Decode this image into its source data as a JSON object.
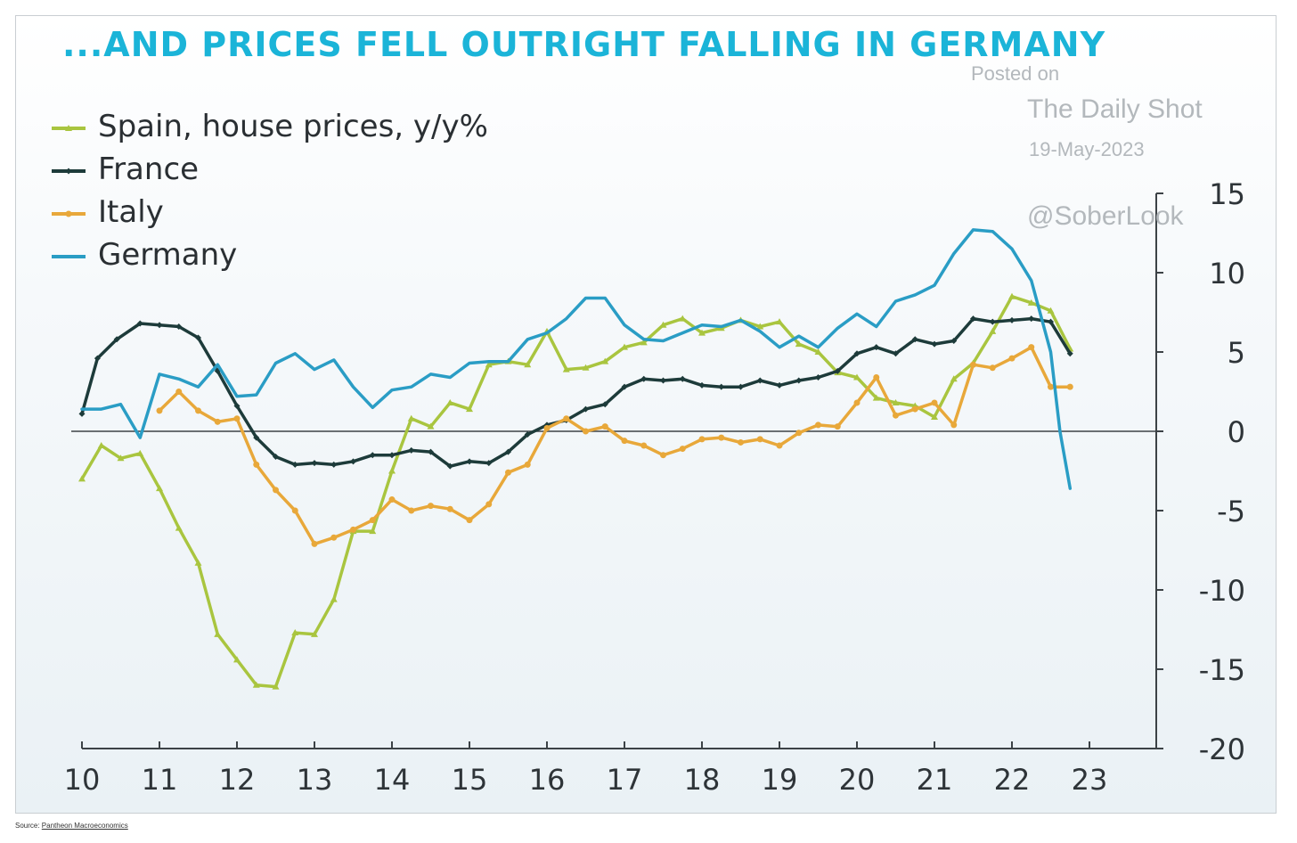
{
  "title": "...AND PRICES FELL OUTRIGHT FALLING IN GERMANY",
  "watermark": {
    "posted": "Posted on",
    "site": "The Daily Shot",
    "date": "19-May-2023",
    "handle": "@SoberLook"
  },
  "source": {
    "prefix": "Source: ",
    "link": "Pantheon Macroeconomics"
  },
  "chart_data": {
    "type": "line",
    "title": "...AND PRICES FELL OUTRIGHT FALLING IN GERMANY",
    "xlim": [
      10,
      24
    ],
    "ylim": [
      -20,
      15
    ],
    "x_ticks": [
      10,
      11,
      12,
      13,
      14,
      15,
      16,
      17,
      18,
      19,
      20,
      21,
      22,
      23
    ],
    "y_ticks": [
      -20,
      -15,
      -10,
      -5,
      0,
      5,
      10,
      15
    ],
    "x_tick_labels": [
      "10",
      "11",
      "12",
      "13",
      "14",
      "15",
      "16",
      "17",
      "18",
      "19",
      "20",
      "21",
      "22",
      "23"
    ],
    "y_tick_labels": [
      "-20",
      "-15",
      "-10",
      "-5",
      "0",
      "5",
      "10",
      "15"
    ],
    "y_axis_side": "right",
    "zero_line": true,
    "legend_position": "top-left",
    "series": [
      {
        "name": "Spain, house prices, y/y%",
        "color": "#a9c53f",
        "marker": "triangle",
        "points": [
          [
            10.0,
            -3.0
          ],
          [
            10.25,
            -0.9
          ],
          [
            10.5,
            -1.7
          ],
          [
            10.75,
            -1.4
          ],
          [
            11.0,
            -3.6
          ],
          [
            11.25,
            -6.1
          ],
          [
            11.5,
            -8.3
          ],
          [
            11.75,
            -12.8
          ],
          [
            12.0,
            -14.4
          ],
          [
            12.25,
            -16.0
          ],
          [
            12.5,
            -16.1
          ],
          [
            12.75,
            -12.7
          ],
          [
            13.0,
            -12.8
          ],
          [
            13.25,
            -10.6
          ],
          [
            13.5,
            -6.3
          ],
          [
            13.75,
            -6.3
          ],
          [
            14.0,
            -2.5
          ],
          [
            14.25,
            0.8
          ],
          [
            14.5,
            0.3
          ],
          [
            14.75,
            1.8
          ],
          [
            15.0,
            1.4
          ],
          [
            15.25,
            4.2
          ],
          [
            15.5,
            4.4
          ],
          [
            15.75,
            4.2
          ],
          [
            16.0,
            6.3
          ],
          [
            16.25,
            3.9
          ],
          [
            16.5,
            4.0
          ],
          [
            16.75,
            4.4
          ],
          [
            17.0,
            5.3
          ],
          [
            17.25,
            5.6
          ],
          [
            17.5,
            6.7
          ],
          [
            17.75,
            7.1
          ],
          [
            18.0,
            6.2
          ],
          [
            18.25,
            6.5
          ],
          [
            18.5,
            7.0
          ],
          [
            18.75,
            6.6
          ],
          [
            19.0,
            6.9
          ],
          [
            19.25,
            5.5
          ],
          [
            19.5,
            5.0
          ],
          [
            19.75,
            3.7
          ],
          [
            20.0,
            3.4
          ],
          [
            20.25,
            2.1
          ],
          [
            20.5,
            1.8
          ],
          [
            20.75,
            1.6
          ],
          [
            21.0,
            0.9
          ],
          [
            21.25,
            3.3
          ],
          [
            21.5,
            4.3
          ],
          [
            21.75,
            6.3
          ],
          [
            22.0,
            8.5
          ],
          [
            22.25,
            8.1
          ],
          [
            22.5,
            7.6
          ],
          [
            22.75,
            5.2
          ]
        ]
      },
      {
        "name": "France",
        "color": "#1d3b3a",
        "marker": "diamond",
        "points": [
          [
            10.0,
            1.1
          ],
          [
            10.2,
            4.6
          ],
          [
            10.45,
            5.8
          ],
          [
            10.75,
            6.8
          ],
          [
            11.0,
            6.7
          ],
          [
            11.25,
            6.6
          ],
          [
            11.5,
            5.9
          ],
          [
            11.75,
            3.8
          ],
          [
            12.0,
            1.6
          ],
          [
            12.25,
            -0.4
          ],
          [
            12.5,
            -1.6
          ],
          [
            12.75,
            -2.1
          ],
          [
            13.0,
            -2.0
          ],
          [
            13.25,
            -2.1
          ],
          [
            13.5,
            -1.9
          ],
          [
            13.75,
            -1.5
          ],
          [
            14.0,
            -1.5
          ],
          [
            14.25,
            -1.2
          ],
          [
            14.5,
            -1.3
          ],
          [
            14.75,
            -2.2
          ],
          [
            15.0,
            -1.9
          ],
          [
            15.25,
            -2.0
          ],
          [
            15.5,
            -1.3
          ],
          [
            15.75,
            -0.2
          ],
          [
            16.0,
            0.4
          ],
          [
            16.25,
            0.7
          ],
          [
            16.5,
            1.4
          ],
          [
            16.75,
            1.7
          ],
          [
            17.0,
            2.8
          ],
          [
            17.25,
            3.3
          ],
          [
            17.5,
            3.2
          ],
          [
            17.75,
            3.3
          ],
          [
            18.0,
            2.9
          ],
          [
            18.25,
            2.8
          ],
          [
            18.5,
            2.8
          ],
          [
            18.75,
            3.2
          ],
          [
            19.0,
            2.9
          ],
          [
            19.25,
            3.2
          ],
          [
            19.5,
            3.4
          ],
          [
            19.75,
            3.8
          ],
          [
            20.0,
            4.9
          ],
          [
            20.25,
            5.3
          ],
          [
            20.5,
            4.9
          ],
          [
            20.75,
            5.8
          ],
          [
            21.0,
            5.5
          ],
          [
            21.25,
            5.7
          ],
          [
            21.5,
            7.1
          ],
          [
            21.75,
            6.9
          ],
          [
            22.0,
            7.0
          ],
          [
            22.25,
            7.1
          ],
          [
            22.5,
            6.9
          ],
          [
            22.75,
            4.9
          ]
        ]
      },
      {
        "name": "Italy",
        "color": "#e8a83a",
        "marker": "circle",
        "points": [
          [
            11.0,
            1.3
          ],
          [
            11.25,
            2.5
          ],
          [
            11.5,
            1.3
          ],
          [
            11.75,
            0.6
          ],
          [
            12.0,
            0.8
          ],
          [
            12.25,
            -2.1
          ],
          [
            12.5,
            -3.7
          ],
          [
            12.75,
            -5.0
          ],
          [
            13.0,
            -7.1
          ],
          [
            13.25,
            -6.7
          ],
          [
            13.5,
            -6.2
          ],
          [
            13.75,
            -5.6
          ],
          [
            14.0,
            -4.3
          ],
          [
            14.25,
            -5.0
          ],
          [
            14.5,
            -4.7
          ],
          [
            14.75,
            -4.9
          ],
          [
            15.0,
            -5.6
          ],
          [
            15.25,
            -4.6
          ],
          [
            15.5,
            -2.6
          ],
          [
            15.75,
            -2.1
          ],
          [
            16.0,
            0.2
          ],
          [
            16.25,
            0.8
          ],
          [
            16.5,
            0.0
          ],
          [
            16.75,
            0.3
          ],
          [
            17.0,
            -0.6
          ],
          [
            17.25,
            -0.9
          ],
          [
            17.5,
            -1.5
          ],
          [
            17.75,
            -1.1
          ],
          [
            18.0,
            -0.5
          ],
          [
            18.25,
            -0.4
          ],
          [
            18.5,
            -0.7
          ],
          [
            18.75,
            -0.5
          ],
          [
            19.0,
            -0.9
          ],
          [
            19.25,
            -0.1
          ],
          [
            19.5,
            0.4
          ],
          [
            19.75,
            0.3
          ],
          [
            20.0,
            1.8
          ],
          [
            20.25,
            3.4
          ],
          [
            20.5,
            1.0
          ],
          [
            20.75,
            1.4
          ],
          [
            21.0,
            1.8
          ],
          [
            21.25,
            0.4
          ],
          [
            21.5,
            4.2
          ],
          [
            21.75,
            4.0
          ],
          [
            22.0,
            4.6
          ],
          [
            22.25,
            5.3
          ],
          [
            22.5,
            2.8
          ],
          [
            22.75,
            2.8
          ]
        ]
      },
      {
        "name": "Germany",
        "color": "#2a9dc5",
        "marker": "none",
        "points": [
          [
            10.0,
            1.4
          ],
          [
            10.25,
            1.4
          ],
          [
            10.5,
            1.7
          ],
          [
            10.75,
            -0.4
          ],
          [
            11.0,
            3.6
          ],
          [
            11.25,
            3.3
          ],
          [
            11.5,
            2.8
          ],
          [
            11.75,
            4.2
          ],
          [
            12.0,
            2.2
          ],
          [
            12.25,
            2.3
          ],
          [
            12.5,
            4.3
          ],
          [
            12.75,
            4.9
          ],
          [
            13.0,
            3.9
          ],
          [
            13.25,
            4.5
          ],
          [
            13.5,
            2.8
          ],
          [
            13.75,
            1.5
          ],
          [
            14.0,
            2.6
          ],
          [
            14.25,
            2.8
          ],
          [
            14.5,
            3.6
          ],
          [
            14.75,
            3.4
          ],
          [
            15.0,
            4.3
          ],
          [
            15.25,
            4.4
          ],
          [
            15.5,
            4.4
          ],
          [
            15.75,
            5.8
          ],
          [
            16.0,
            6.2
          ],
          [
            16.25,
            7.1
          ],
          [
            16.5,
            8.4
          ],
          [
            16.75,
            8.4
          ],
          [
            17.0,
            6.7
          ],
          [
            17.25,
            5.8
          ],
          [
            17.5,
            5.7
          ],
          [
            17.75,
            6.2
          ],
          [
            18.0,
            6.7
          ],
          [
            18.25,
            6.6
          ],
          [
            18.5,
            7.0
          ],
          [
            18.75,
            6.3
          ],
          [
            19.0,
            5.3
          ],
          [
            19.25,
            6.0
          ],
          [
            19.5,
            5.3
          ],
          [
            19.75,
            6.5
          ],
          [
            20.0,
            7.4
          ],
          [
            20.25,
            6.6
          ],
          [
            20.5,
            8.2
          ],
          [
            20.75,
            8.6
          ],
          [
            21.0,
            9.2
          ],
          [
            21.25,
            11.2
          ],
          [
            21.5,
            12.7
          ],
          [
            21.75,
            12.6
          ],
          [
            22.0,
            11.5
          ],
          [
            22.25,
            9.5
          ],
          [
            22.5,
            5.0
          ],
          [
            22.62,
            0.0
          ],
          [
            22.75,
            -3.6
          ]
        ]
      }
    ]
  }
}
